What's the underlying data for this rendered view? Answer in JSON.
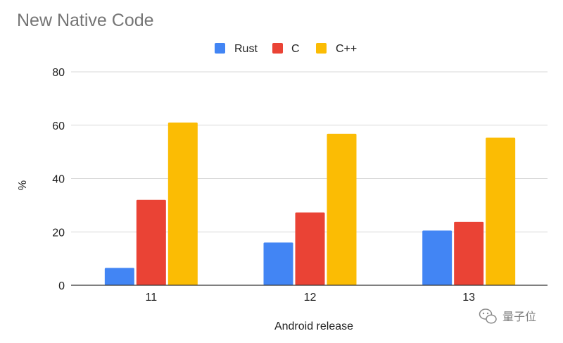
{
  "chart_data": {
    "type": "bar",
    "title": "New Native Code",
    "xlabel": "Android release",
    "ylabel": "%",
    "categories": [
      "11",
      "12",
      "13"
    ],
    "series": [
      {
        "name": "Rust",
        "color": "#4285f4",
        "values": [
          6.5,
          16,
          20.5
        ]
      },
      {
        "name": "C",
        "color": "#ea4335",
        "values": [
          32,
          27.3,
          23.8
        ]
      },
      {
        "name": "C++",
        "color": "#fbbc04",
        "values": [
          61,
          56.8,
          55.3
        ]
      }
    ],
    "ylim": [
      0,
      80
    ],
    "yticks": [
      "0",
      "20",
      "40",
      "60",
      "80"
    ],
    "grid": true,
    "legend_position": "top-center"
  },
  "watermark": {
    "text": "量子位",
    "icon": "wechat-icon"
  }
}
